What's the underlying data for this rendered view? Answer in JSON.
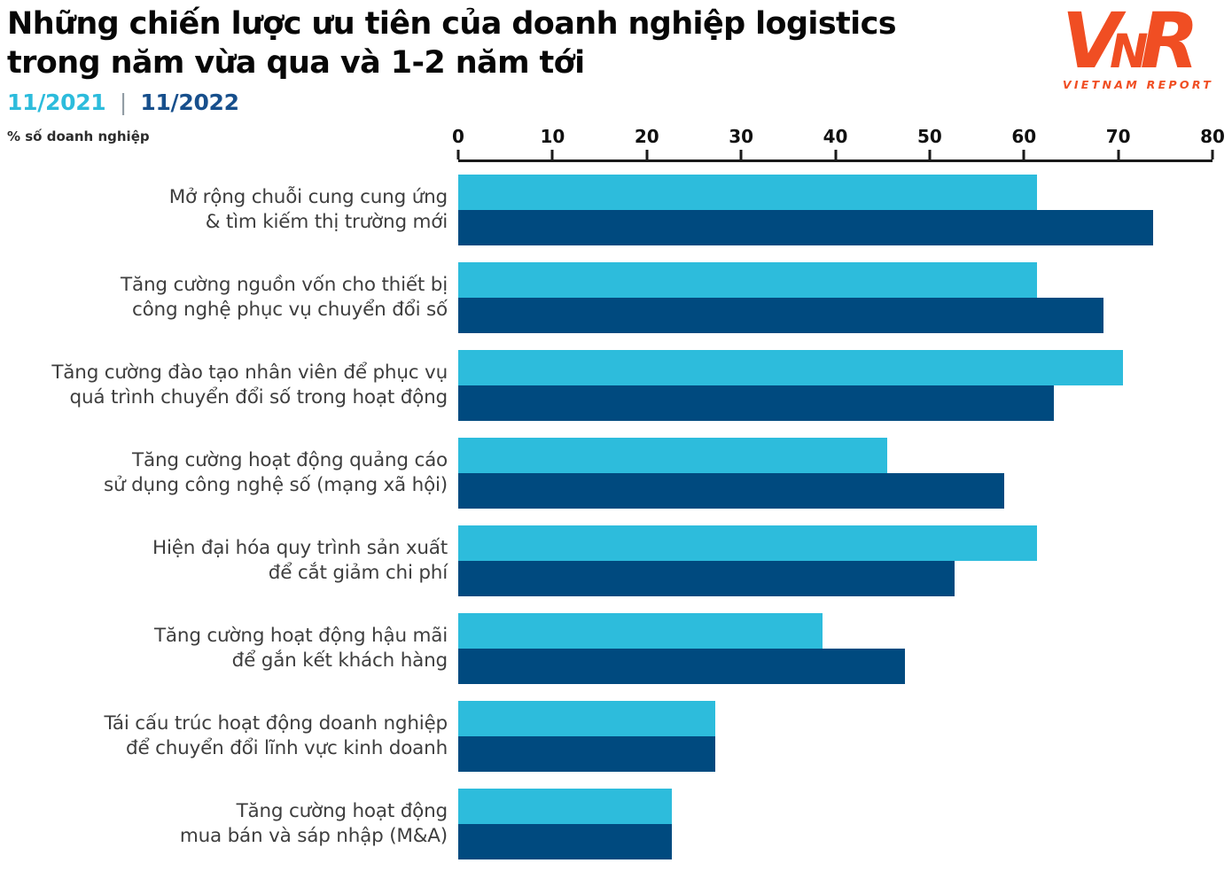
{
  "header": {
    "title_line1": "Những chiến lược ưu tiên của doanh nghiệp logistics",
    "title_line2": "trong năm vừa qua và 1-2 năm tới",
    "legend": {
      "series1": "11/2021",
      "separator": "|",
      "series2": "11/2022"
    },
    "axis_note": "% số doanh nghiệp"
  },
  "logo": {
    "letters": [
      "V",
      "N",
      "R"
    ],
    "wordmark": "VIETNAM REPORT",
    "color": "#F04E23"
  },
  "colors": {
    "series_2021_bar": "#2DBCDC",
    "series_2022_bar": "#004A7F",
    "legend_2021_text": "#2DBCDC",
    "legend_2022_text": "#174F8C",
    "axis": "#1a1a1a"
  },
  "chart_data": {
    "type": "bar",
    "orientation": "horizontal",
    "title": "Những chiến lược ưu tiên của doanh nghiệp logistics trong năm vừa qua và 1-2 năm tới",
    "unit_label": "% số doanh nghiệp",
    "xlim": [
      0,
      80
    ],
    "xticks": [
      0,
      10,
      20,
      30,
      40,
      50,
      60,
      70,
      80
    ],
    "grid": false,
    "legend_position": "top-left",
    "categories": [
      [
        "Mở rộng chuỗi cung cung ứng",
        "& tìm kiếm thị trường mới"
      ],
      [
        "Tăng cường nguồn vốn cho thiết bị",
        "công nghệ phục vụ chuyển đổi số"
      ],
      [
        "Tăng cường đào tạo nhân viên để phục vụ",
        "quá trình chuyển đổi số trong hoạt động"
      ],
      [
        "Tăng cường hoạt động quảng cáo",
        "sử dụng công nghệ số (mạng xã hội)"
      ],
      [
        "Hiện đại hóa quy trình sản xuất",
        "để cắt giảm chi phí"
      ],
      [
        "Tăng cường hoạt động hậu mãi",
        "để gắn kết khách hàng"
      ],
      [
        "Tái cấu trúc hoạt động doanh nghiệp",
        "để chuyển đổi lĩnh vực kinh doanh"
      ],
      [
        "Tăng cường hoạt động",
        "mua bán và sáp nhập (M&A)"
      ]
    ],
    "series": [
      {
        "name": "11/2021",
        "color": "#2DBCDC",
        "values": [
          61.4,
          61.4,
          70.5,
          45.5,
          61.4,
          38.6,
          27.3,
          22.7
        ]
      },
      {
        "name": "11/2022",
        "color": "#004A7F",
        "values": [
          73.7,
          68.4,
          63.2,
          57.9,
          52.6,
          47.4,
          27.3,
          22.7
        ]
      }
    ]
  }
}
